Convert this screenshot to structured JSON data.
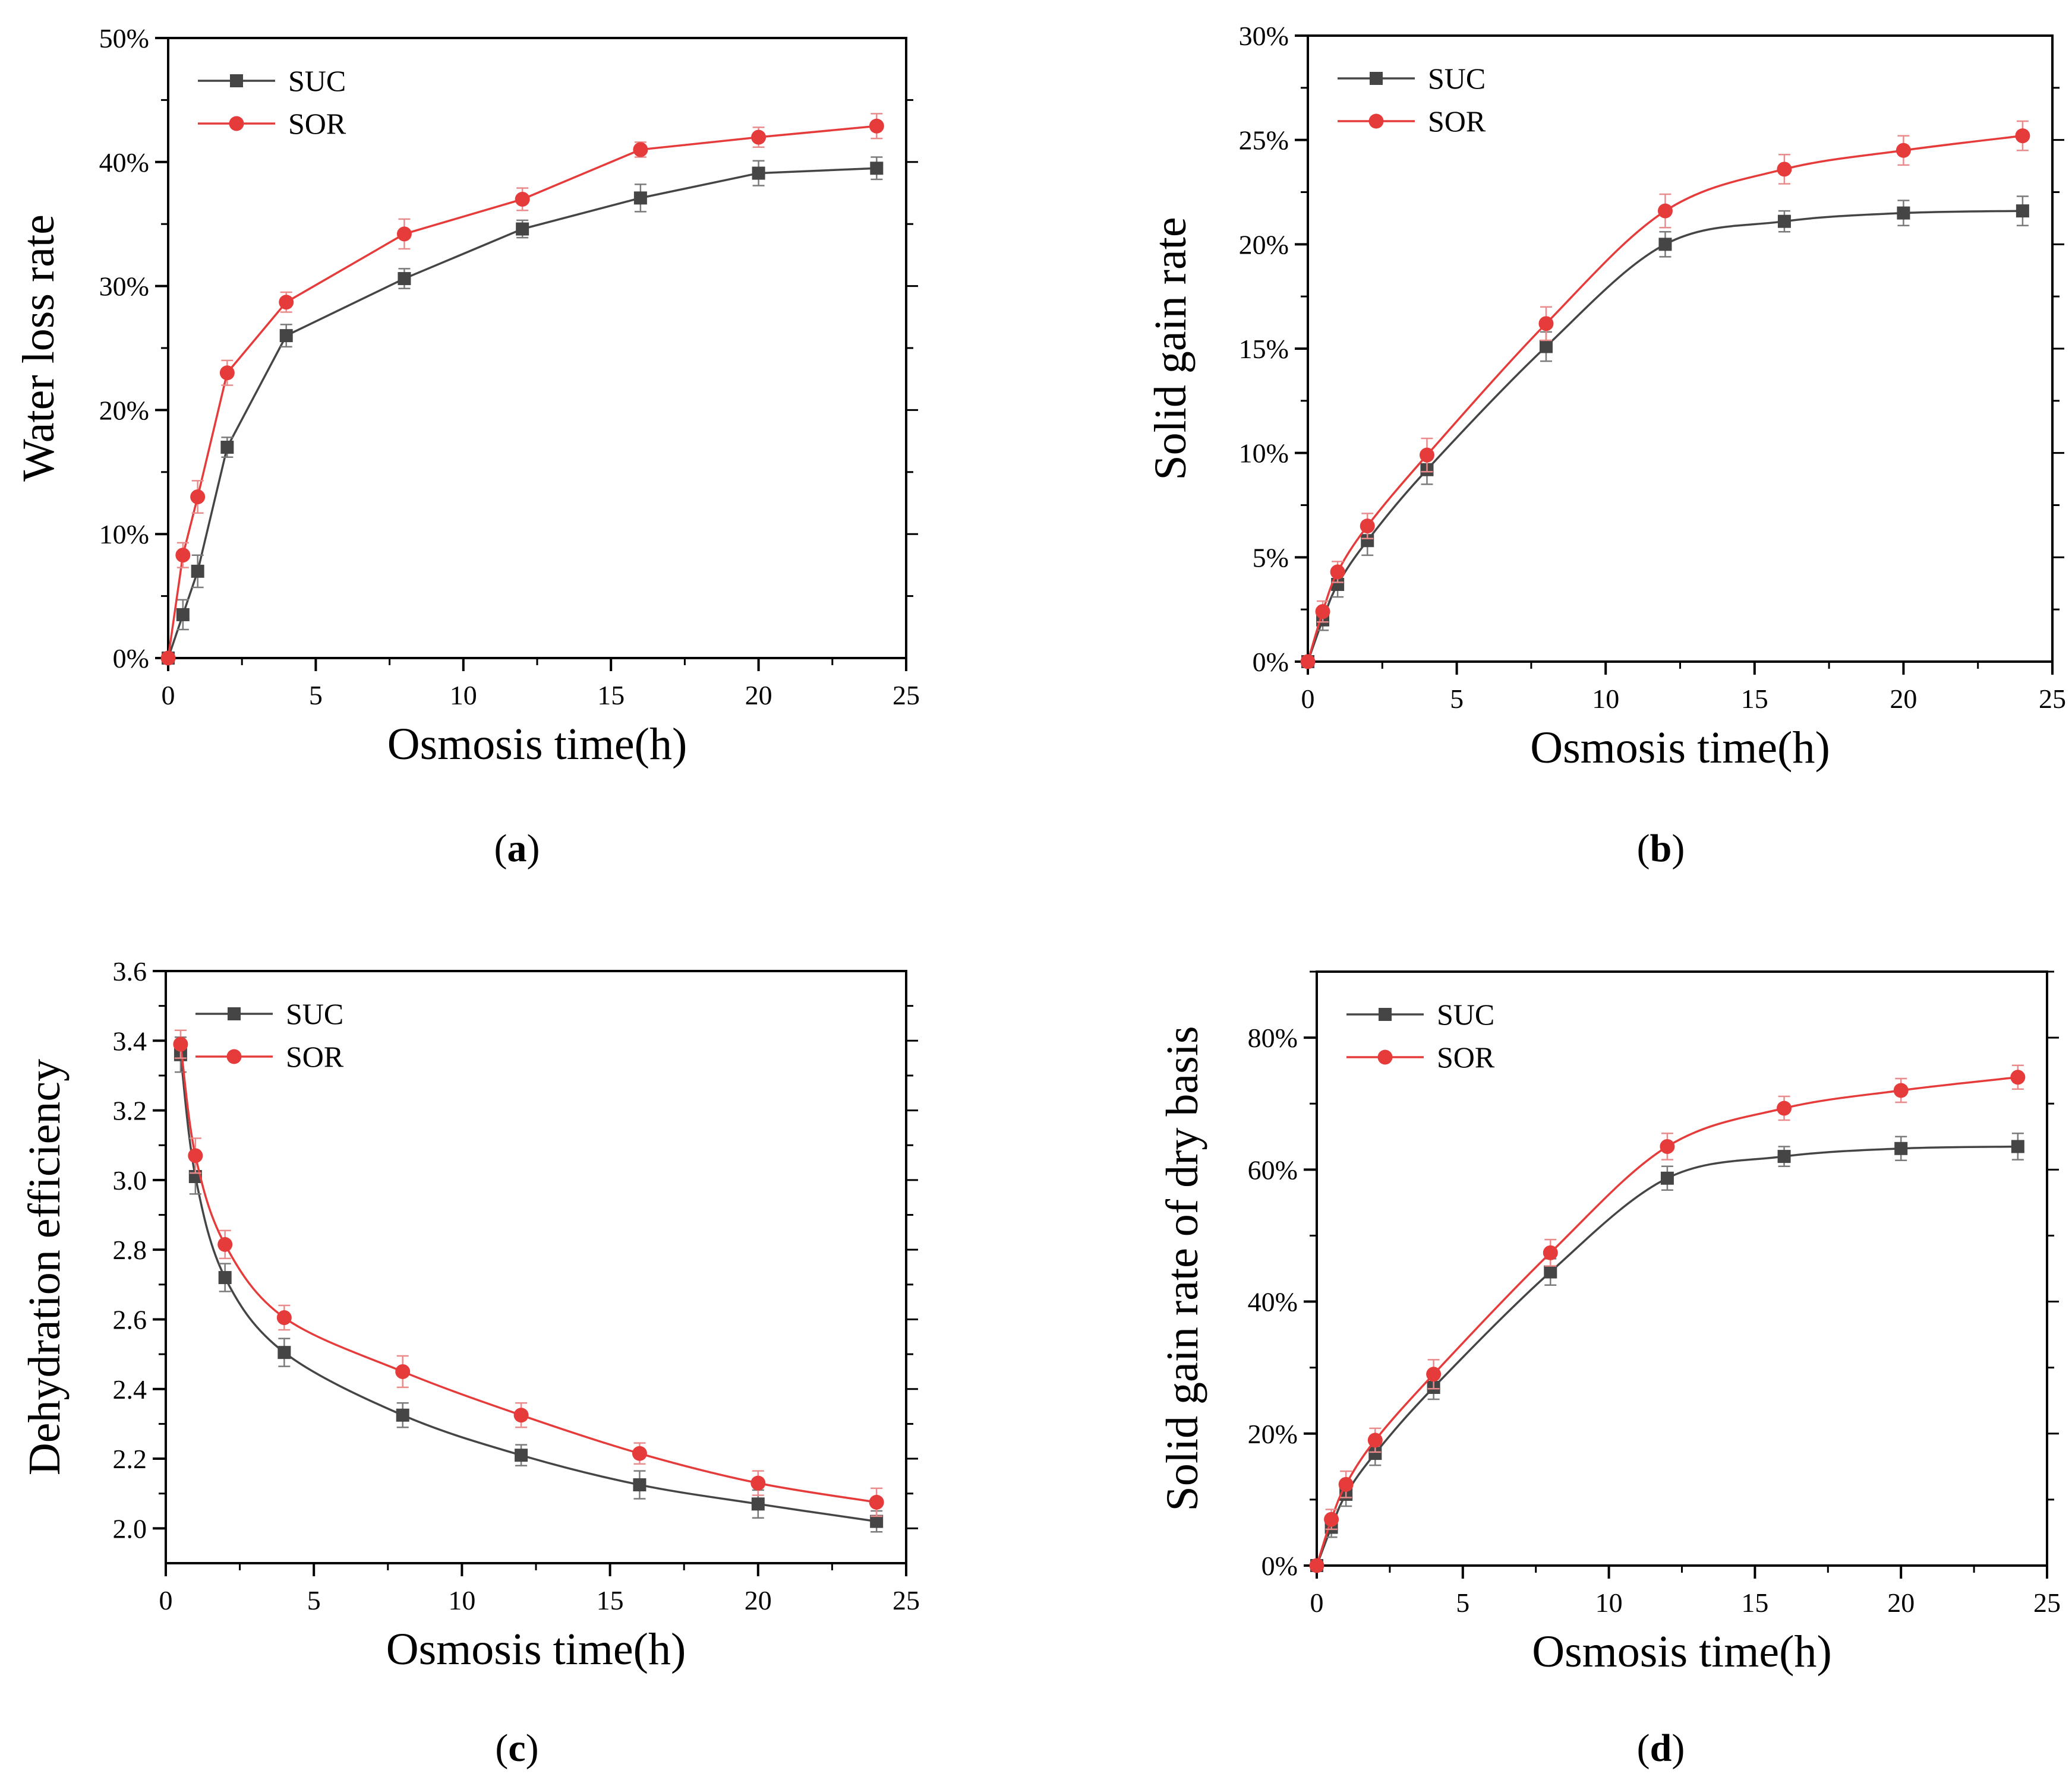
{
  "panels": [
    {
      "label": "a",
      "chart_data": {
        "type": "line",
        "xlabel": "Osmosis time(h)",
        "ylabel": "Water loss rate",
        "xlim": [
          0,
          25
        ],
        "ylim": [
          0,
          50
        ],
        "xticks": [
          0,
          5,
          10,
          15,
          20,
          25
        ],
        "xtick_labels": [
          "0",
          "5",
          "10",
          "15",
          "20",
          "25"
        ],
        "yticks": [
          0,
          10,
          20,
          30,
          40,
          50
        ],
        "ytick_labels": [
          "0%",
          "10%",
          "20%",
          "30%",
          "40%",
          "50%"
        ],
        "grid": false,
        "legend_position": "top-left",
        "smooth": false,
        "series": [
          {
            "name": "SUC",
            "color": "#454545",
            "marker": "square",
            "x": [
              0,
              0.5,
              1,
              2,
              4,
              8,
              12,
              16,
              20,
              24
            ],
            "y": [
              0,
              3.5,
              7.0,
              17.0,
              26.0,
              30.6,
              34.6,
              37.1,
              39.1,
              39.5
            ],
            "err": [
              0,
              1.2,
              1.3,
              0.8,
              0.9,
              0.8,
              0.7,
              1.1,
              1.0,
              0.9
            ]
          },
          {
            "name": "SOR",
            "color": "#e63b3b",
            "marker": "circle",
            "x": [
              0,
              0.5,
              1,
              2,
              4,
              8,
              12,
              16,
              20,
              24
            ],
            "y": [
              0,
              8.3,
              13.0,
              23.0,
              28.7,
              34.2,
              37.0,
              41.0,
              42.0,
              42.9
            ],
            "err": [
              0,
              1.0,
              1.3,
              1.0,
              0.8,
              1.2,
              0.9,
              0.6,
              0.8,
              1.0
            ]
          }
        ]
      }
    },
    {
      "label": "b",
      "chart_data": {
        "type": "line",
        "xlabel": "Osmosis time(h)",
        "ylabel": "Solid gain rate",
        "xlim": [
          0,
          25
        ],
        "ylim": [
          0,
          30
        ],
        "xticks": [
          0,
          5,
          10,
          15,
          20,
          25
        ],
        "xtick_labels": [
          "0",
          "5",
          "10",
          "15",
          "20",
          "25"
        ],
        "yticks": [
          0,
          5,
          10,
          15,
          20,
          25,
          30
        ],
        "ytick_labels": [
          "0%",
          "5%",
          "10%",
          "15%",
          "20%",
          "25%",
          "30%"
        ],
        "grid": false,
        "legend_position": "top-left",
        "smooth": true,
        "series": [
          {
            "name": "SUC",
            "color": "#454545",
            "marker": "square",
            "x": [
              0,
              0.5,
              1,
              2,
              4,
              8,
              12,
              16,
              20,
              24
            ],
            "y": [
              0,
              2.0,
              3.7,
              5.8,
              9.2,
              15.1,
              20.0,
              21.1,
              21.5,
              21.6
            ],
            "err": [
              0,
              0.5,
              0.6,
              0.7,
              0.7,
              0.7,
              0.6,
              0.5,
              0.6,
              0.7
            ]
          },
          {
            "name": "SOR",
            "color": "#e63b3b",
            "marker": "circle",
            "x": [
              0,
              0.5,
              1,
              2,
              4,
              8,
              12,
              16,
              20,
              24
            ],
            "y": [
              0,
              2.4,
              4.3,
              6.5,
              9.9,
              16.2,
              21.6,
              23.6,
              24.5,
              25.2
            ],
            "err": [
              0,
              0.5,
              0.5,
              0.6,
              0.8,
              0.8,
              0.8,
              0.7,
              0.7,
              0.7
            ]
          }
        ]
      }
    },
    {
      "label": "c",
      "chart_data": {
        "type": "line",
        "xlabel": "Osmosis time(h)",
        "ylabel": "Dehydration efficiency",
        "xlim": [
          0,
          25
        ],
        "ylim": [
          1.9,
          3.6
        ],
        "xticks": [
          0,
          5,
          10,
          15,
          20,
          25
        ],
        "xtick_labels": [
          "0",
          "5",
          "10",
          "15",
          "20",
          "25"
        ],
        "yticks": [
          2.0,
          2.2,
          2.4,
          2.6,
          2.8,
          3.0,
          3.2,
          3.4,
          3.6
        ],
        "ytick_labels": [
          "2.0",
          "2.2",
          "2.4",
          "2.6",
          "2.8",
          "3.0",
          "3.2",
          "3.4",
          "3.6"
        ],
        "grid": false,
        "legend_position": "top-left",
        "smooth": true,
        "series": [
          {
            "name": "SUC",
            "color": "#454545",
            "marker": "square",
            "x": [
              0.5,
              1,
              2,
              4,
              8,
              12,
              16,
              20,
              24
            ],
            "y": [
              3.36,
              3.01,
              2.72,
              2.505,
              2.325,
              2.21,
              2.125,
              2.07,
              2.02
            ],
            "err": [
              0.05,
              0.05,
              0.04,
              0.04,
              0.035,
              0.03,
              0.04,
              0.04,
              0.03
            ]
          },
          {
            "name": "SOR",
            "color": "#e63b3b",
            "marker": "circle",
            "x": [
              0.5,
              1,
              2,
              4,
              8,
              12,
              16,
              20,
              24
            ],
            "y": [
              3.39,
              3.07,
              2.815,
              2.605,
              2.45,
              2.325,
              2.215,
              2.13,
              2.075
            ],
            "err": [
              0.04,
              0.05,
              0.04,
              0.035,
              0.045,
              0.035,
              0.03,
              0.035,
              0.04
            ]
          }
        ]
      }
    },
    {
      "label": "d",
      "chart_data": {
        "type": "line",
        "xlabel": "Osmosis time(h)",
        "ylabel": "Solid gain rate of dry basis",
        "xlim": [
          0,
          25
        ],
        "ylim": [
          0,
          90
        ],
        "xticks": [
          0,
          5,
          10,
          15,
          20,
          25
        ],
        "xtick_labels": [
          "0",
          "5",
          "10",
          "15",
          "20",
          "25"
        ],
        "yticks": [
          0,
          20,
          40,
          60,
          80
        ],
        "ytick_labels": [
          "0%",
          "20%",
          "40%",
          "60%",
          "80%"
        ],
        "grid": false,
        "legend_position": "top-left",
        "smooth": true,
        "series": [
          {
            "name": "SUC",
            "color": "#454545",
            "marker": "square",
            "x": [
              0,
              0.5,
              1,
              2,
              4,
              8,
              12,
              16,
              20,
              24
            ],
            "y": [
              0,
              5.8,
              10.8,
              17.0,
              27.0,
              44.5,
              58.7,
              62.0,
              63.2,
              63.5
            ],
            "err": [
              0,
              1.5,
              1.8,
              1.8,
              1.8,
              2.0,
              1.8,
              1.5,
              1.8,
              2.0
            ]
          },
          {
            "name": "SOR",
            "color": "#e63b3b",
            "marker": "circle",
            "x": [
              0,
              0.5,
              1,
              2,
              4,
              8,
              12,
              16,
              20,
              24
            ],
            "y": [
              0,
              7.0,
              12.3,
              19.0,
              29.0,
              47.4,
              63.5,
              69.3,
              72.0,
              74.0
            ],
            "err": [
              0,
              1.5,
              2.0,
              1.8,
              2.2,
              2.0,
              2.0,
              1.8,
              1.8,
              1.8
            ]
          }
        ]
      }
    }
  ]
}
